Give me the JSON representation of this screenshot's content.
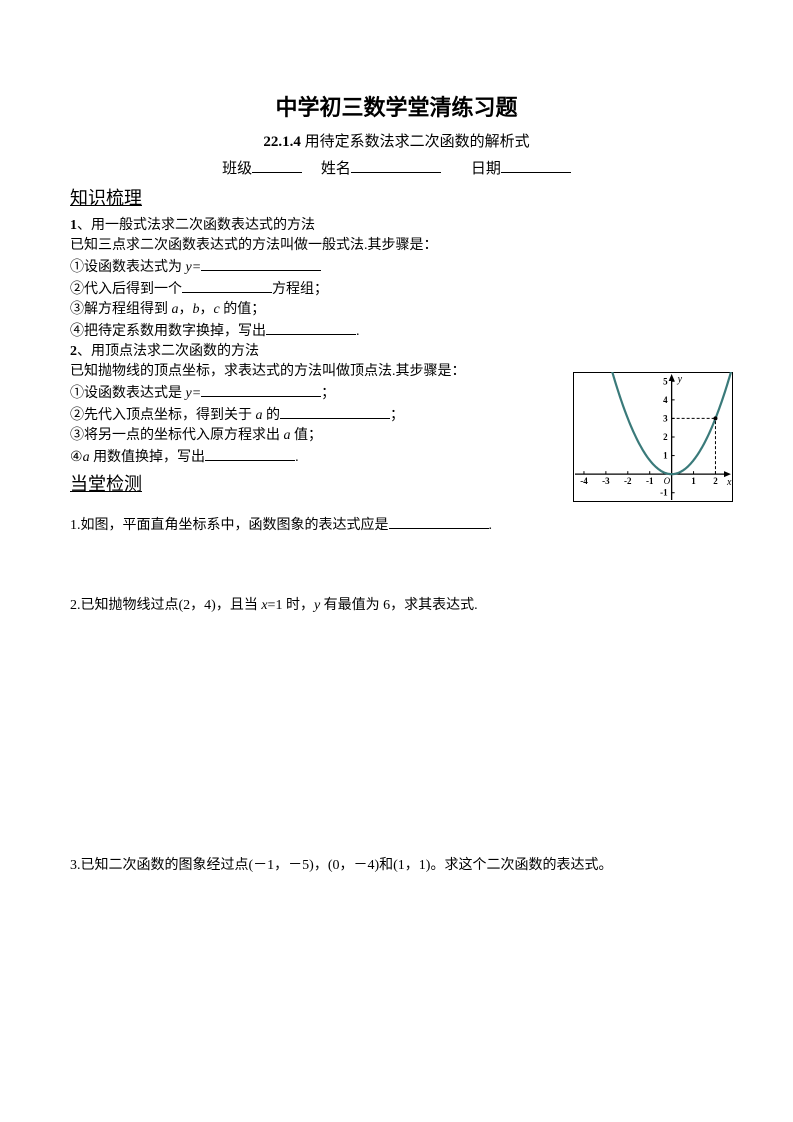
{
  "title": "中学初三数学堂清练习题",
  "subtitle_num": "22.1.4",
  "subtitle_text": "用待定系数法求二次函数的解析式",
  "info": {
    "class_label": "班级",
    "name_label": "姓名",
    "date_label": "日期"
  },
  "section1": "知识梳理",
  "p1": {
    "num": "1",
    "title": "、用一般式法求二次函数表达式的方法",
    "line0": "已知三点求二次函数表达式的方法叫做一般式法.其步骤是：",
    "s1a": "①设函数表达式为",
    "s1b": "y=",
    "s2a": "②代入后得到一个",
    "s2b": "方程组；",
    "s3a": "③解方程组得到",
    "s3b": "a",
    "s3c": "，",
    "s3d": "b",
    "s3e": "，",
    "s3f": "c",
    "s3g": " 的值；",
    "s4a": "④把待定系数用数字换掉，写出",
    "s4b": "."
  },
  "p2": {
    "num": "2",
    "title": "、用顶点法求二次函数的方法",
    "line0": "已知抛物线的顶点坐标，求表达式的方法叫做顶点法.其步骤是：",
    "s1a": "①设函数表达式是",
    "s1b": "y=",
    "s1c": "；",
    "s2a": "②先代入顶点坐标，得到关于",
    "s2b": "a",
    "s2c": " 的",
    "s2d": "；",
    "s3a": "③将另一点的坐标代入原方程求出",
    "s3b": "a",
    "s3c": " 值；",
    "s4a": "④",
    "s4b": "a",
    "s4c": " 用数值换掉，写出",
    "s4d": "."
  },
  "section2": "当堂检测",
  "q1a": "1.如图，平面直角坐标系中，函数图象的表达式应是",
  "q1b": ".",
  "q2a": "2.已知抛物线过点(2，4)，且当",
  "q2b": " x",
  "q2c": "=1 时，",
  "q2d": "y",
  "q2e": " 有最值为 6，求其表达式.",
  "q3": "3.已知二次函数的图象经过点(－1，－5)，(0，－4)和(1，1)。求这个二次函数的表达式。",
  "graph": {
    "axis_color": "#000000",
    "curve_color": "#3a7a7a",
    "dash_color": "#000000",
    "xticks": [
      "-4",
      "-3",
      "-2",
      "-1",
      "1",
      "2"
    ],
    "yticks": [
      "-1",
      "1",
      "2",
      "3",
      "4",
      "5"
    ],
    "x_label": "x",
    "y_label": "y",
    "origin_label": "O",
    "vertex": [
      0,
      0
    ],
    "point": [
      2,
      3
    ],
    "xlim": [
      -4.5,
      2.8
    ],
    "ylim": [
      -1.5,
      5.5
    ],
    "curve_a": 0.75
  }
}
